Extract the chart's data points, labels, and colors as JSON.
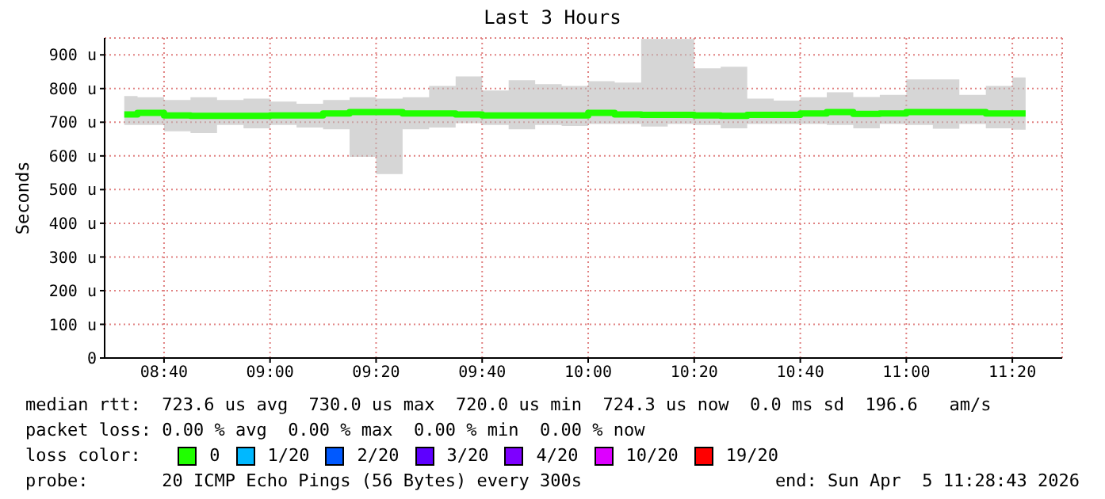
{
  "chart_data": {
    "type": "step",
    "title": "Last 3 Hours",
    "ylabel": "Seconds",
    "legend_title": "loss color:",
    "legend": "bottom",
    "grid": true,
    "x": [
      8.5417,
      8.625,
      8.7083,
      8.7917,
      8.875,
      8.9583,
      9.0417,
      9.125,
      9.2083,
      9.2917,
      9.375,
      9.4583,
      9.5417,
      9.625,
      9.7083,
      9.7917,
      9.875,
      9.9583,
      10.0417,
      10.125,
      10.2083,
      10.2917,
      10.375,
      10.4583,
      10.5417,
      10.625,
      10.7083,
      10.7917,
      10.875,
      10.9583,
      11.0417,
      11.125,
      11.2083,
      11.2917,
      11.375
    ],
    "xlim": [
      8.48,
      11.49
    ],
    "xticks": [
      {
        "value": 8.6667,
        "label": "08:40"
      },
      {
        "value": 9,
        "label": "09:00"
      },
      {
        "value": 9.3333,
        "label": "09:20"
      },
      {
        "value": 9.6667,
        "label": "09:40"
      },
      {
        "value": 10,
        "label": "10:00"
      },
      {
        "value": 10.3333,
        "label": "10:20"
      },
      {
        "value": 10.6667,
        "label": "10:40"
      },
      {
        "value": 11,
        "label": "11:00"
      },
      {
        "value": 11.3333,
        "label": "11:20"
      }
    ],
    "ylim": [
      0,
      950
    ],
    "yticks": [
      0,
      {
        "value": 100,
        "label": "100 u"
      },
      {
        "value": 200,
        "label": "200 u"
      },
      {
        "value": 300,
        "label": "300 u"
      },
      {
        "value": 400,
        "label": "400 u"
      },
      {
        "value": 500,
        "label": "500 u"
      },
      {
        "value": 600,
        "label": "600 u"
      },
      {
        "value": 700,
        "label": "700 u"
      },
      {
        "value": 800,
        "label": "800 u"
      },
      {
        "value": 900,
        "label": "900 u"
      }
    ],
    "series": [
      {
        "name": "0",
        "color": "#20ff00",
        "values": [
          723,
          728,
          720,
          719,
          719,
          719,
          720,
          720,
          726,
          730,
          730,
          726,
          726,
          723,
          720,
          720,
          720,
          720,
          728,
          723,
          722,
          722,
          720,
          719,
          722,
          722,
          726,
          730,
          725,
          726,
          730,
          730,
          730,
          726,
          726
        ],
        "lower": [
          692,
          692,
          673,
          668,
          692,
          682,
          692,
          684,
          679,
          597,
          546,
          679,
          684,
          697,
          692,
          679,
          692,
          689,
          695,
          695,
          687,
          695,
          692,
          682,
          695,
          695,
          695,
          692,
          682,
          695,
          692,
          681,
          695,
          682,
          678
        ],
        "upper": [
          778,
          774,
          766,
          774,
          766,
          770,
          761,
          755,
          766,
          774,
          770,
          774,
          808,
          836,
          794,
          825,
          813,
          808,
          822,
          818,
          947,
          947,
          860,
          865,
          770,
          764,
          774,
          789,
          775,
          781,
          827,
          827,
          781,
          808,
          833
        ]
      },
      {
        "name": "1/20",
        "color": "#00b8ff",
        "values": [
          null,
          null,
          null,
          null,
          null,
          null,
          null,
          null,
          null,
          null,
          null,
          null,
          null,
          null,
          null,
          null,
          null,
          null,
          null,
          null,
          null,
          null,
          null,
          null,
          null,
          null,
          null,
          null,
          null,
          null,
          null,
          null,
          null,
          null,
          null
        ]
      },
      {
        "name": "2/20",
        "color": "#0059ff",
        "values": [
          null,
          null,
          null,
          null,
          null,
          null,
          null,
          null,
          null,
          null,
          null,
          null,
          null,
          null,
          null,
          null,
          null,
          null,
          null,
          null,
          null,
          null,
          null,
          null,
          null,
          null,
          null,
          null,
          null,
          null,
          null,
          null,
          null,
          null,
          null
        ]
      },
      {
        "name": "3/20",
        "color": "#5e00ff",
        "values": [
          null,
          null,
          null,
          null,
          null,
          null,
          null,
          null,
          null,
          null,
          null,
          null,
          null,
          null,
          null,
          null,
          null,
          null,
          null,
          null,
          null,
          null,
          null,
          null,
          null,
          null,
          null,
          null,
          null,
          null,
          null,
          null,
          null,
          null,
          null
        ]
      },
      {
        "name": "4/20",
        "color": "#7e00ff",
        "values": [
          null,
          null,
          null,
          null,
          null,
          null,
          null,
          null,
          null,
          null,
          null,
          null,
          null,
          null,
          null,
          null,
          null,
          null,
          null,
          null,
          null,
          null,
          null,
          null,
          null,
          null,
          null,
          null,
          null,
          null,
          null,
          null,
          null,
          null,
          null
        ]
      },
      {
        "name": "10/20",
        "color": "#dd00ff",
        "values": [
          null,
          null,
          null,
          null,
          null,
          null,
          null,
          null,
          null,
          null,
          null,
          null,
          null,
          null,
          null,
          null,
          null,
          null,
          null,
          null,
          null,
          null,
          null,
          null,
          null,
          null,
          null,
          null,
          null,
          null,
          null,
          null,
          null,
          null,
          null
        ]
      },
      {
        "name": "19/20",
        "color": "#ff0000",
        "values": [
          null,
          null,
          null,
          null,
          null,
          null,
          null,
          null,
          null,
          null,
          null,
          null,
          null,
          null,
          null,
          null,
          null,
          null,
          null,
          null,
          null,
          null,
          null,
          null,
          null,
          null,
          null,
          null,
          null,
          null,
          null,
          null,
          null,
          null,
          null
        ]
      }
    ],
    "annotations": [
      "median rtt:  723.6 us avg  730.0 us max  720.0 us min  724.3 us now  0.0 ms sd  196.6   am/s",
      "packet loss: 0.00 % avg  0.00 % max  0.00 % min  0.00 % now",
      "probe:       20 ICMP Echo Pings (56 Bytes) every 300s",
      "end: Sun Apr  5 11:28:43 2026"
    ]
  }
}
